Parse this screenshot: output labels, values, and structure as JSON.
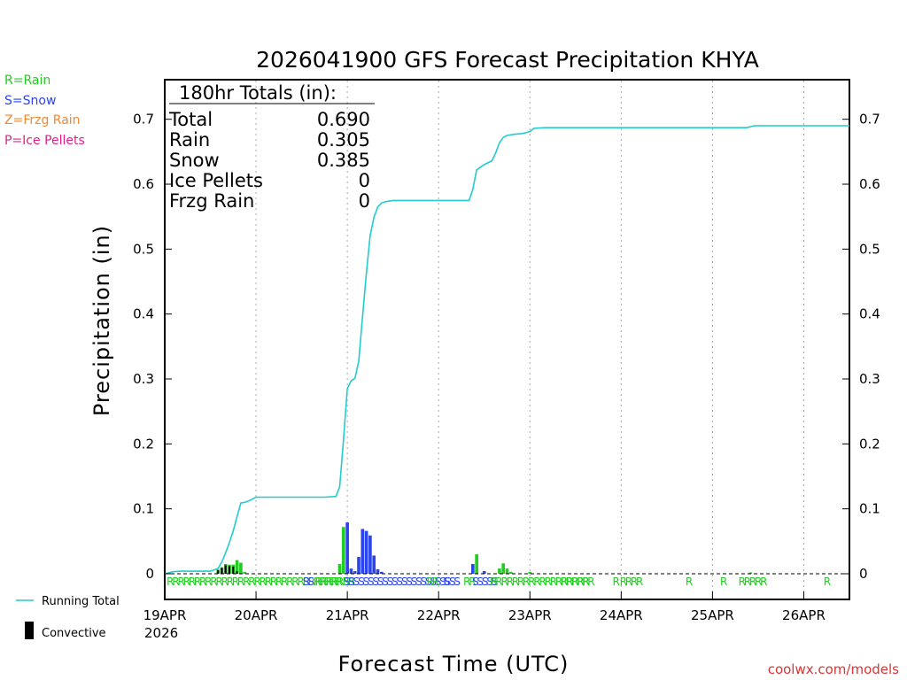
{
  "colors": {
    "rain": "#22cc22",
    "snow": "#2b44ee",
    "frzg": "#ee8833",
    "ice": "#dd2288",
    "convective": "#000000",
    "running_total": "#22cccc",
    "grid": "#aaaaaa",
    "source": "#dd3333"
  },
  "legend": {
    "rain": "R=Rain",
    "snow": "S=Snow",
    "frzg": "Z=Frzg Rain",
    "ice": "P=Ice Pellets",
    "running_total": "Running Total",
    "convective": "Convective"
  },
  "totals": {
    "header": "180hr Totals (in):",
    "rows": [
      {
        "label": "Total",
        "value": "0.690"
      },
      {
        "label": "Rain",
        "value": "0.305"
      },
      {
        "label": "Snow",
        "value": "0.385"
      },
      {
        "label": "Ice Pellets",
        "value": "0"
      },
      {
        "label": "Frzg Rain",
        "value": "0"
      }
    ]
  },
  "source_label": "coolwx.com/models",
  "chart_data": {
    "type": "bar",
    "title": "2026041900 GFS Forecast Precipitation KHYA",
    "xlabel": "Forecast Time (UTC)",
    "ylabel": "Precipitation (in)",
    "ylim": [
      0,
      0.75
    ],
    "xlim_hours": [
      0,
      180
    ],
    "yticks": [
      "0",
      "0.1",
      "0.2",
      "0.3",
      "0.4",
      "0.5",
      "0.6",
      "0.7"
    ],
    "xticks": [
      {
        "hour": 0,
        "label": "19APR"
      },
      {
        "hour": 24,
        "label": "20APR"
      },
      {
        "hour": 48,
        "label": "21APR"
      },
      {
        "hour": 72,
        "label": "22APR"
      },
      {
        "hour": 96,
        "label": "23APR"
      },
      {
        "hour": 120,
        "label": "24APR"
      },
      {
        "hour": 144,
        "label": "25APR"
      },
      {
        "hour": 168,
        "label": "26APR"
      }
    ],
    "year_label": "2026",
    "bars": [
      {
        "hour": 14,
        "type": "R",
        "value": 0.006,
        "conv": 0.006
      },
      {
        "hour": 15,
        "type": "R",
        "value": 0.01,
        "conv": 0.009
      },
      {
        "hour": 16,
        "type": "R",
        "value": 0.015,
        "conv": 0.013
      },
      {
        "hour": 17,
        "type": "R",
        "value": 0.014,
        "conv": 0.012
      },
      {
        "hour": 18,
        "type": "R",
        "value": 0.014,
        "conv": 0.011
      },
      {
        "hour": 19,
        "type": "R",
        "value": 0.021,
        "conv": 0.004
      },
      {
        "hour": 20,
        "type": "R",
        "value": 0.017,
        "conv": 0
      },
      {
        "hour": 21,
        "type": "R",
        "value": 0.003,
        "conv": 0
      },
      {
        "hour": 46,
        "type": "R",
        "value": 0.015,
        "conv": 0
      },
      {
        "hour": 47,
        "type": "R",
        "value": 0.072,
        "conv": 0
      },
      {
        "hour": 48,
        "type": "S",
        "value": 0.079,
        "conv": 0
      },
      {
        "hour": 49,
        "type": "S",
        "value": 0.008,
        "conv": 0
      },
      {
        "hour": 50,
        "type": "S",
        "value": 0.004,
        "conv": 0
      },
      {
        "hour": 51,
        "type": "S",
        "value": 0.026,
        "conv": 0
      },
      {
        "hour": 52,
        "type": "S",
        "value": 0.069,
        "conv": 0
      },
      {
        "hour": 53,
        "type": "S",
        "value": 0.066,
        "conv": 0
      },
      {
        "hour": 54,
        "type": "S",
        "value": 0.059,
        "conv": 0
      },
      {
        "hour": 55,
        "type": "S",
        "value": 0.028,
        "conv": 0
      },
      {
        "hour": 56,
        "type": "S",
        "value": 0.007,
        "conv": 0
      },
      {
        "hour": 57,
        "type": "S",
        "value": 0.003,
        "conv": 0
      },
      {
        "hour": 81,
        "type": "S",
        "value": 0.015,
        "conv": 0
      },
      {
        "hour": 82,
        "type": "R",
        "value": 0.03,
        "conv": 0
      },
      {
        "hour": 84,
        "type": "S",
        "value": 0.004,
        "conv": 0
      },
      {
        "hour": 88,
        "type": "R",
        "value": 0.008,
        "conv": 0
      },
      {
        "hour": 89,
        "type": "R",
        "value": 0.016,
        "conv": 0
      },
      {
        "hour": 90,
        "type": "R",
        "value": 0.008,
        "conv": 0
      },
      {
        "hour": 91,
        "type": "R",
        "value": 0.003,
        "conv": 0
      },
      {
        "hour": 96,
        "type": "R",
        "value": 0.003,
        "conv": 0
      },
      {
        "hour": 154,
        "type": "R",
        "value": 0.002,
        "conv": 0
      }
    ],
    "running_total": {
      "hours": [
        0,
        2,
        4,
        6,
        8,
        10,
        12,
        14,
        15,
        16,
        17,
        18,
        19,
        20,
        21,
        22,
        24,
        30,
        36,
        42,
        45,
        46,
        47,
        48,
        49,
        50,
        51,
        52,
        53,
        54,
        55,
        56,
        57,
        58,
        60,
        66,
        72,
        78,
        80,
        81,
        82,
        84,
        86,
        87,
        88,
        89,
        90,
        92,
        94,
        96,
        97,
        100,
        120,
        150,
        153,
        155,
        160,
        180
      ],
      "values": [
        0.0,
        0.003,
        0.004,
        0.004,
        0.004,
        0.004,
        0.004,
        0.008,
        0.018,
        0.032,
        0.048,
        0.066,
        0.088,
        0.109,
        0.11,
        0.112,
        0.118,
        0.118,
        0.118,
        0.118,
        0.119,
        0.134,
        0.206,
        0.285,
        0.297,
        0.301,
        0.327,
        0.396,
        0.462,
        0.521,
        0.549,
        0.565,
        0.571,
        0.573,
        0.575,
        0.575,
        0.575,
        0.575,
        0.575,
        0.592,
        0.622,
        0.63,
        0.636,
        0.648,
        0.664,
        0.672,
        0.675,
        0.677,
        0.678,
        0.681,
        0.686,
        0.687,
        0.687,
        0.687,
        0.687,
        0.69,
        0.69,
        0.69
      ]
    },
    "type_markers": [
      {
        "text": "RRRRRRRRRRRRRRRRRRRRRRRRRRRRRRRR",
        "hour": 0.5,
        "color": "rain"
      },
      {
        "text": "SS",
        "hour": 36.3,
        "color": "snow"
      },
      {
        "text": "RRRRRRR",
        "hour": 39.5,
        "color": "rain"
      },
      {
        "text": "SSSSSSSSSSSSSSSSSSSSSSSS",
        "hour": 47.0,
        "color": "snow"
      },
      {
        "text": "RR",
        "hour": 68.8,
        "color": "rain"
      },
      {
        "text": "S",
        "hour": 73.2,
        "color": "snow"
      },
      {
        "text": "RR",
        "hour": 78.5,
        "color": "rain"
      },
      {
        "text": "SSSSS",
        "hour": 80.8,
        "color": "snow"
      },
      {
        "text": "RRRRRRRRRRRRRRRRRR",
        "hour": 85.5,
        "color": "rain"
      },
      {
        "text": "RRRRRR",
        "hour": 104.0,
        "color": "rain"
      },
      {
        "text": "R",
        "hour": 117.7,
        "color": "rain"
      },
      {
        "text": "RRRR",
        "hour": 119.6,
        "color": "rain"
      },
      {
        "text": "R",
        "hour": 136.9,
        "color": "rain"
      },
      {
        "text": "R",
        "hour": 146.0,
        "color": "rain"
      },
      {
        "text": "RRRRR",
        "hour": 150.8,
        "color": "rain"
      },
      {
        "text": "R",
        "hour": 173.2,
        "color": "rain"
      }
    ]
  }
}
